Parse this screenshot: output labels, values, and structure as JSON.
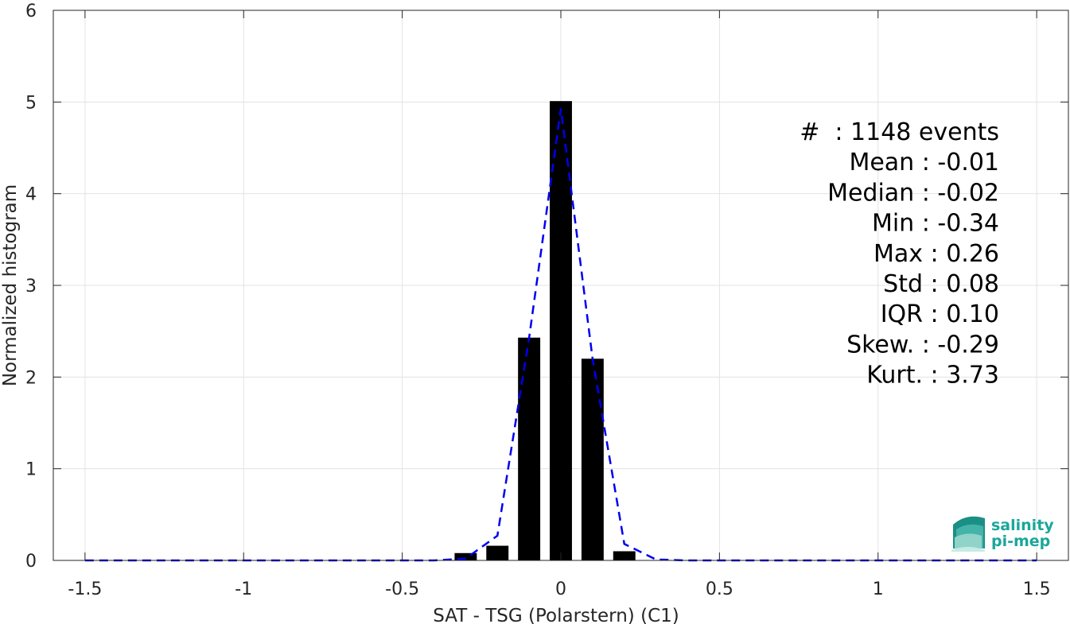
{
  "chart_data": {
    "type": "bar",
    "xlabel": "SAT - TSG (Polarstern) (C1)",
    "ylabel": "Normalized histogram",
    "xlim": [
      -1.6,
      1.6
    ],
    "ylim": [
      0,
      6
    ],
    "xticks": [
      -1.5,
      -1,
      -0.5,
      0,
      0.5,
      1,
      1.5
    ],
    "xtick_labels": [
      "-1.5",
      "-1",
      "-0.5",
      "0",
      "0.5",
      "1",
      "1.5"
    ],
    "yticks": [
      0,
      1,
      2,
      3,
      4,
      5,
      6
    ],
    "ytick_labels": [
      "0",
      "1",
      "2",
      "3",
      "4",
      "5",
      "6"
    ],
    "grid": true,
    "bar_color": "#000000",
    "bar_width": 0.07,
    "bars": {
      "x": [
        -0.3,
        -0.2,
        -0.1,
        0.0,
        0.1,
        0.2
      ],
      "values": [
        0.08,
        0.16,
        2.43,
        5.01,
        2.2,
        0.1
      ]
    },
    "fit_line": {
      "style": "dashed",
      "color": "#0000ee",
      "x": [
        -1.5,
        -1.4,
        -1.3,
        -1.2,
        -1.1,
        -1.0,
        -0.9,
        -0.8,
        -0.7,
        -0.6,
        -0.5,
        -0.4,
        -0.3,
        -0.2,
        -0.1,
        0.0,
        0.1,
        0.2,
        0.3,
        0.4,
        0.5,
        0.6,
        0.7,
        0.8,
        0.9,
        1.0,
        1.1,
        1.2,
        1.3,
        1.4,
        1.5
      ],
      "y": [
        0,
        0,
        0,
        0,
        0,
        0,
        0,
        0,
        0,
        0,
        0,
        0,
        0.02,
        0.27,
        2.43,
        4.93,
        2.2,
        0.18,
        0.01,
        0,
        0,
        0,
        0,
        0,
        0,
        0,
        0,
        0,
        0,
        0,
        0
      ]
    },
    "stats_lines": [
      "#  : 1148 events",
      "Mean : -0.01",
      "Median : -0.02",
      "Min : -0.34",
      "Max : 0.26",
      "Std : 0.08",
      "IQR : 0.10",
      "Skew. : -0.29",
      "Kurt. : 3.73"
    ]
  },
  "logo": {
    "line1": "salinity",
    "line2": "pi-mep",
    "color": "#1aa79a"
  }
}
